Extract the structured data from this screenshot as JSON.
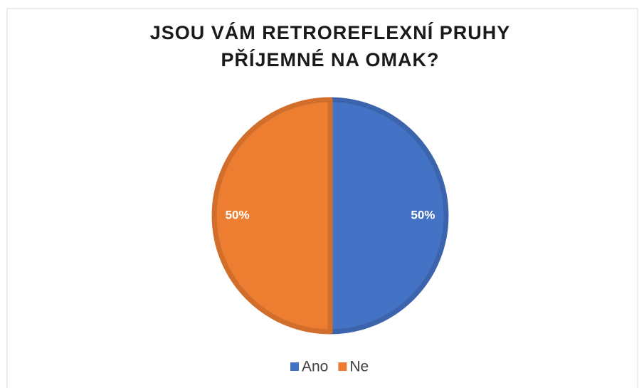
{
  "chart_data": {
    "type": "pie",
    "title": "JSOU VÁM RETROREFLEXNÍ PRUHY\nPŘÍJEMNÉ NA OMAK?",
    "categories": [
      "Ano",
      "Ne"
    ],
    "values": [
      50,
      50
    ],
    "value_labels": [
      "50%",
      "50%"
    ],
    "colors": [
      "#4472c4",
      "#ed7d31"
    ],
    "legend": "bottom"
  }
}
